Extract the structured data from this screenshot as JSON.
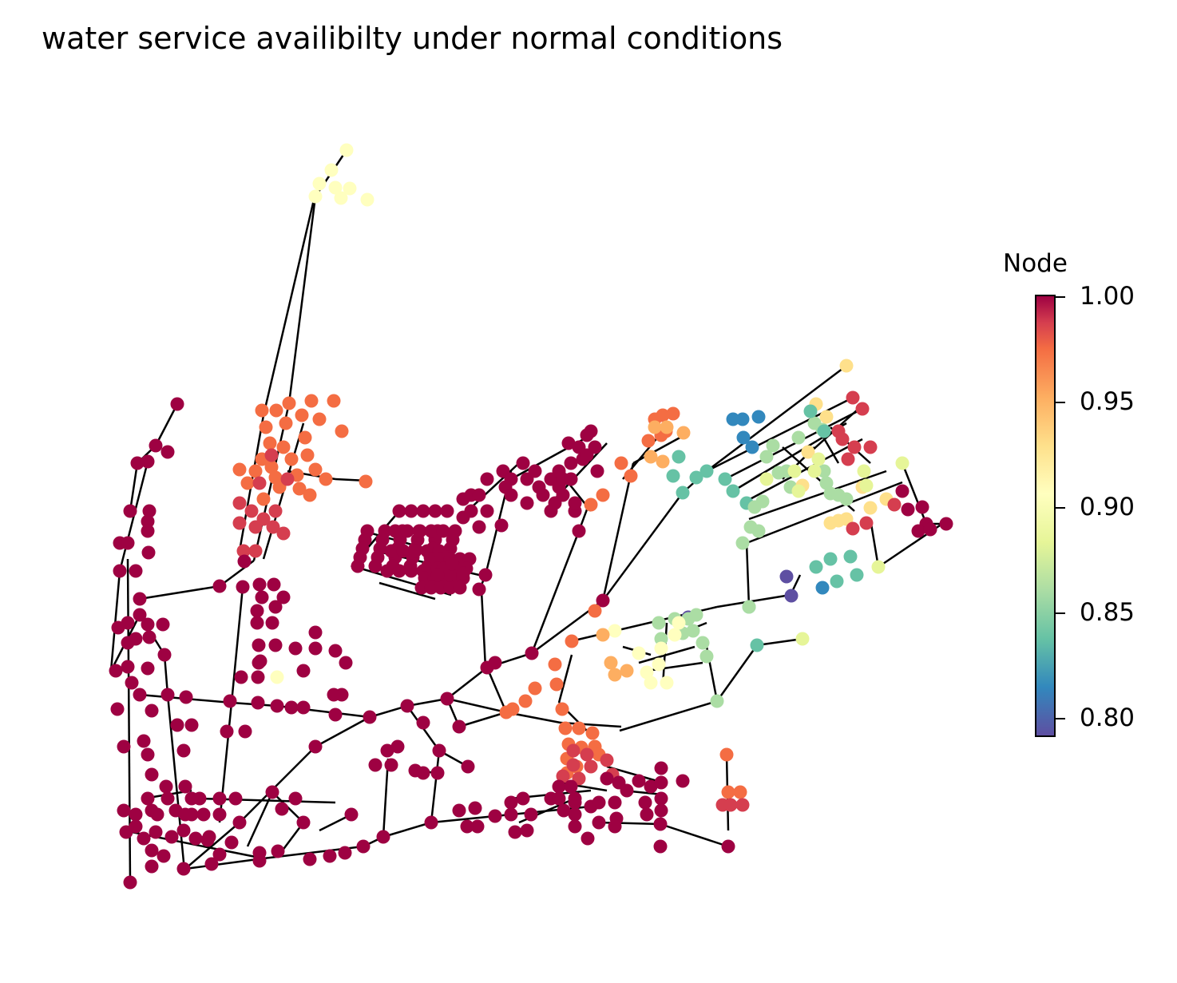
{
  "title": "water service availibilty under normal conditions",
  "colorbar": {
    "title": "Node",
    "ticks": [
      "1.00",
      "0.95",
      "0.90",
      "0.85",
      "0.80"
    ],
    "colormap": "Spectral",
    "range": [
      0.79,
      1.0
    ]
  },
  "colors": {
    "edge": "#000000",
    "scale": [
      "#5e4fa2",
      "#3288bd",
      "#66c2a5",
      "#abdda4",
      "#e6f598",
      "#ffffbf",
      "#fee08b",
      "#fdae61",
      "#f46d43",
      "#d53e4f",
      "#9e0142"
    ]
  }
}
